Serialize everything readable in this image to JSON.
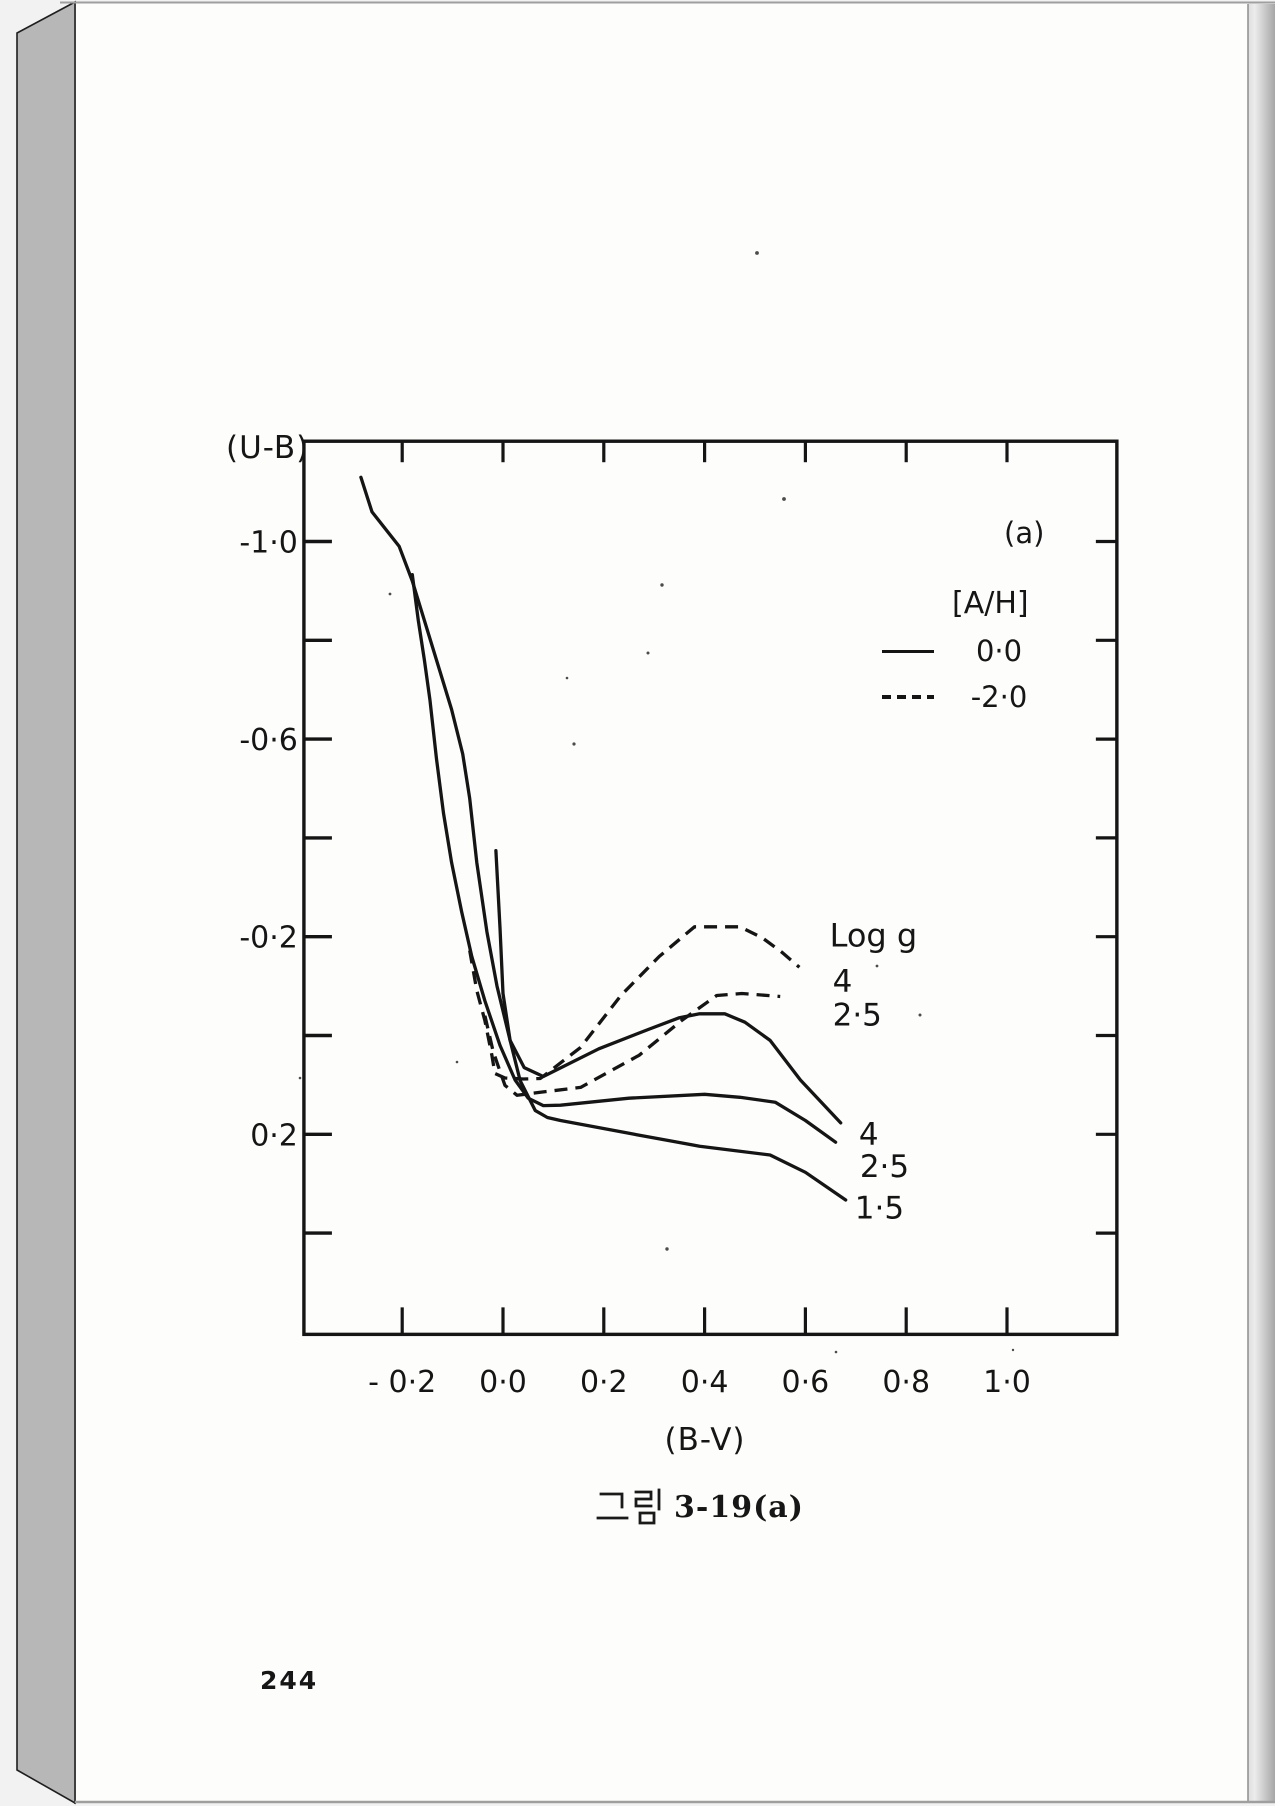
{
  "page": {
    "number": "244",
    "caption": {
      "full": "그림 3-19(a)",
      "hangul": "그림",
      "figure": "3-19(a)"
    }
  },
  "chart_data": {
    "type": "line",
    "title": "",
    "panel_label": "(a)",
    "xlabel": "(B-V)",
    "ylabel": "(U-B)",
    "grid": false,
    "x_axis": {
      "min": -0.395,
      "max": 1.218,
      "ticks": [
        -0.2,
        0.0,
        0.2,
        0.4,
        0.6,
        0.8,
        1.0
      ],
      "tick_labels": [
        "- 0·2",
        "0·0",
        "0·2",
        "0·4",
        "0·6",
        "0·8",
        "1·0"
      ]
    },
    "y_axis": {
      "min": -1.203,
      "max": 0.605,
      "inverted": true,
      "ticks": [
        -1.0,
        -0.8,
        -0.6,
        -0.4,
        -0.2,
        0.0,
        0.2,
        0.4
      ],
      "tick_labels": [
        "-1·0",
        "",
        "-0·6",
        "",
        "-0·2",
        "",
        "0·2",
        ""
      ]
    },
    "legend": {
      "title": "[A/H]",
      "entries": [
        {
          "style": "solid",
          "label": "0·0"
        },
        {
          "style": "dashed",
          "label": "-2·0"
        }
      ],
      "position": "upper-right"
    },
    "series": [
      {
        "name": "[A/H]=0.0  log g=4",
        "style": "solid",
        "points": [
          [
            -0.282,
            -1.13
          ],
          [
            -0.26,
            -1.06
          ],
          [
            -0.206,
            -0.99
          ],
          [
            -0.18,
            -0.92
          ],
          [
            -0.156,
            -0.84
          ],
          [
            -0.126,
            -0.74
          ],
          [
            -0.102,
            -0.66
          ],
          [
            -0.08,
            -0.57
          ],
          [
            -0.066,
            -0.48
          ],
          [
            -0.052,
            -0.35
          ],
          [
            -0.032,
            -0.21
          ],
          [
            -0.012,
            -0.1
          ],
          [
            0.014,
            0.01
          ],
          [
            0.042,
            0.065
          ],
          [
            0.08,
            0.083
          ],
          [
            0.19,
            0.027
          ],
          [
            0.29,
            -0.013
          ],
          [
            0.35,
            -0.036
          ],
          [
            0.39,
            -0.044
          ],
          [
            0.44,
            -0.044
          ],
          [
            0.48,
            -0.027
          ],
          [
            0.53,
            0.01
          ],
          [
            0.59,
            0.09
          ],
          [
            0.67,
            0.177
          ]
        ]
      },
      {
        "name": "[A/H]=0.0  log g=2.5",
        "style": "solid",
        "points": [
          [
            -0.18,
            -0.933
          ],
          [
            -0.168,
            -0.84
          ],
          [
            -0.156,
            -0.76
          ],
          [
            -0.145,
            -0.68
          ],
          [
            -0.132,
            -0.56
          ],
          [
            -0.118,
            -0.45
          ],
          [
            -0.102,
            -0.35
          ],
          [
            -0.082,
            -0.25
          ],
          [
            -0.062,
            -0.16
          ],
          [
            -0.036,
            -0.07
          ],
          [
            -0.006,
            0.02
          ],
          [
            0.024,
            0.09
          ],
          [
            0.05,
            0.127
          ],
          [
            0.08,
            0.142
          ],
          [
            0.114,
            0.141
          ],
          [
            0.25,
            0.127
          ],
          [
            0.4,
            0.119
          ],
          [
            0.47,
            0.125
          ],
          [
            0.54,
            0.135
          ],
          [
            0.6,
            0.172
          ],
          [
            0.66,
            0.216
          ]
        ]
      },
      {
        "name": "[A/H]=0.0  log g=1.5",
        "style": "solid",
        "points": [
          [
            -0.014,
            -0.374
          ],
          [
            -0.006,
            -0.218
          ],
          [
            0.0,
            -0.085
          ],
          [
            0.014,
            0.01
          ],
          [
            0.034,
            0.091
          ],
          [
            0.064,
            0.152
          ],
          [
            0.088,
            0.166
          ],
          [
            0.114,
            0.172
          ],
          [
            0.25,
            0.198
          ],
          [
            0.39,
            0.224
          ],
          [
            0.53,
            0.242
          ],
          [
            0.6,
            0.277
          ],
          [
            0.68,
            0.333
          ]
        ]
      },
      {
        "name": "[A/H]=-2.0  log g=4",
        "style": "dashed",
        "points": [
          [
            -0.066,
            -0.172
          ],
          [
            -0.052,
            -0.091
          ],
          [
            -0.036,
            -0.03
          ],
          [
            -0.022,
            0.04
          ],
          [
            -0.016,
            0.077
          ],
          [
            0.004,
            0.086
          ],
          [
            0.04,
            0.088
          ],
          [
            0.074,
            0.087
          ],
          [
            0.154,
            0.024
          ],
          [
            0.234,
            -0.081
          ],
          [
            0.31,
            -0.16
          ],
          [
            0.38,
            -0.22
          ],
          [
            0.47,
            -0.22
          ],
          [
            0.514,
            -0.198
          ],
          [
            0.554,
            -0.168
          ],
          [
            0.588,
            -0.138
          ]
        ]
      },
      {
        "name": "[A/H]=-2.0  log g=2.5",
        "style": "dashed",
        "points": [
          [
            -0.036,
            -0.04
          ],
          [
            -0.02,
            0.03
          ],
          [
            -0.012,
            0.055
          ],
          [
            0.004,
            0.101
          ],
          [
            0.028,
            0.121
          ],
          [
            0.074,
            0.115
          ],
          [
            0.154,
            0.105
          ],
          [
            0.27,
            0.04
          ],
          [
            0.354,
            -0.03
          ],
          [
            0.424,
            -0.081
          ],
          [
            0.474,
            -0.085
          ],
          [
            0.55,
            -0.079
          ]
        ]
      }
    ],
    "annotations": [
      {
        "text": "Log g",
        "x": 0.648,
        "y": -0.18,
        "size": 32
      },
      {
        "text": "4",
        "x": 0.654,
        "y": -0.088,
        "size": 31
      },
      {
        "text": "2·5",
        "x": 0.654,
        "y": -0.02,
        "size": 31
      },
      {
        "text": "4",
        "x": 0.706,
        "y": 0.222,
        "size": 31
      },
      {
        "text": "2·5",
        "x": 0.708,
        "y": 0.286,
        "size": 31
      },
      {
        "text": "1·5",
        "x": 0.698,
        "y": 0.37,
        "size": 31
      }
    ]
  }
}
